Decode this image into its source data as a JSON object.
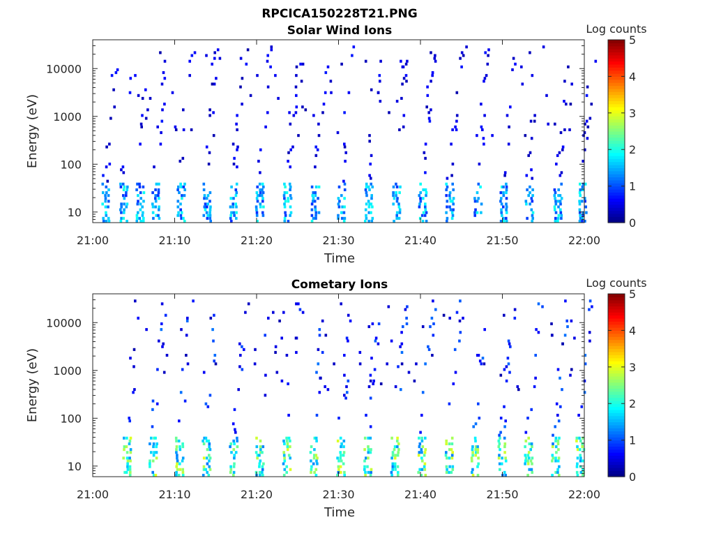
{
  "figure": {
    "title": "RPCICA150228T21.PNG"
  },
  "colors": {
    "axis": "#262626",
    "colormap": [
      "#00007f",
      "#0000ff",
      "#007fff",
      "#00ffff",
      "#7fff7f",
      "#ffff00",
      "#ff7f00",
      "#ff0000",
      "#7f0000"
    ]
  },
  "chart_data": [
    {
      "type": "heatmap",
      "title": "Solar Wind Ions",
      "xlabel": "Time",
      "ylabel": "Energy (eV)",
      "x_ticks": [
        "21:00",
        "21:10",
        "21:20",
        "21:30",
        "21:40",
        "21:50",
        "22:00"
      ],
      "y_scale": "log",
      "y_ticks": [
        "10",
        "100",
        "1000",
        "10000"
      ],
      "ylim": [
        6,
        40000
      ],
      "colorbar": {
        "label": "Log counts",
        "ticks": [
          "0",
          "1",
          "2",
          "3",
          "4",
          "5"
        ],
        "range": [
          0,
          5
        ]
      },
      "scan_minutes": [
        1.0,
        3.2,
        5.2,
        7.1,
        10.2,
        13.4,
        16.6,
        19.8,
        23.2,
        26.6,
        29.8,
        33.1,
        36.5,
        39.7,
        43.0,
        46.4,
        49.6,
        52.7,
        56.2,
        59.2
      ],
      "low_energy_peak_log_counts": 2.0,
      "high_energy_typical_log_counts": 0.5
    },
    {
      "type": "heatmap",
      "title": "Cometary Ions",
      "xlabel": "Time",
      "ylabel": "Energy (eV)",
      "x_ticks": [
        "21:00",
        "21:10",
        "21:20",
        "21:30",
        "21:40",
        "21:50",
        "22:00"
      ],
      "y_scale": "log",
      "y_ticks": [
        "10",
        "100",
        "1000",
        "10000"
      ],
      "ylim": [
        6,
        40000
      ],
      "colorbar": {
        "label": "Log counts",
        "ticks": [
          "0",
          "1",
          "2",
          "3",
          "4",
          "5"
        ],
        "range": [
          0,
          5
        ]
      },
      "scan_minutes": [
        3.6,
        6.8,
        10.0,
        13.3,
        16.6,
        19.8,
        23.1,
        26.4,
        29.7,
        33.0,
        36.3,
        39.6,
        42.9,
        46.1,
        49.4,
        52.6,
        55.9,
        58.9
      ],
      "low_energy_peak_log_counts": 3.0,
      "high_energy_typical_log_counts": 0.8
    }
  ]
}
